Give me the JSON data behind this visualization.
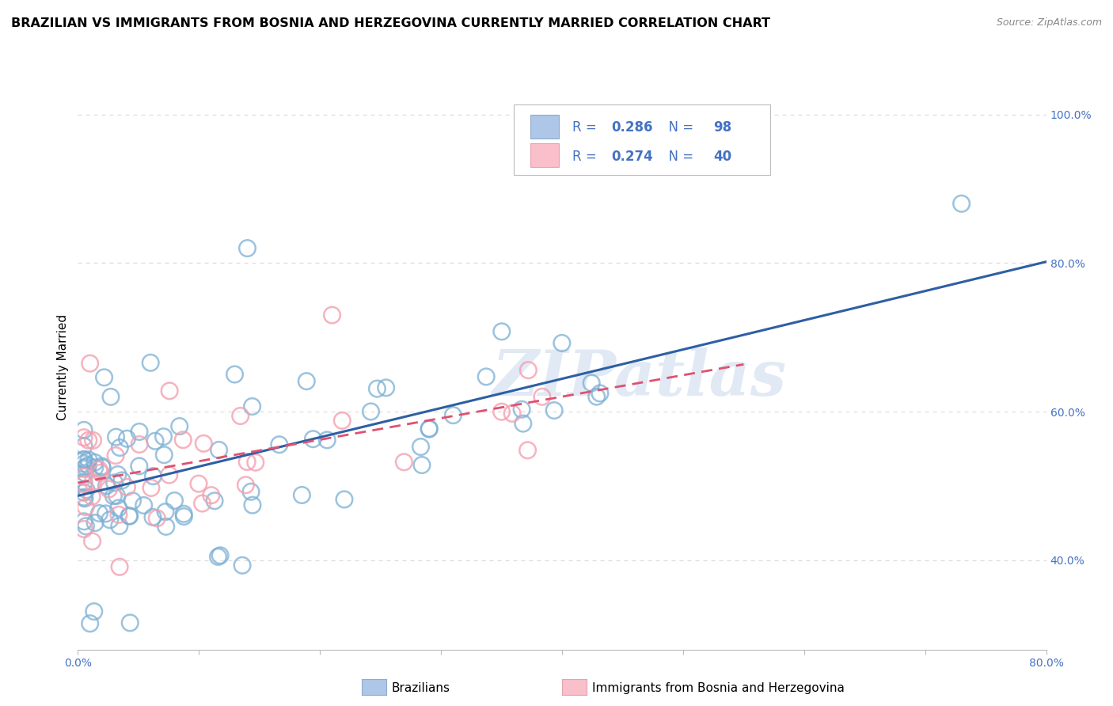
{
  "title": "BRAZILIAN VS IMMIGRANTS FROM BOSNIA AND HERZEGOVINA CURRENTLY MARRIED CORRELATION CHART",
  "source": "Source: ZipAtlas.com",
  "ylabel": "Currently Married",
  "xlim": [
    0.0,
    0.8
  ],
  "ylim": [
    0.28,
    1.04
  ],
  "xticks": [
    0.0,
    0.1,
    0.2,
    0.3,
    0.4,
    0.5,
    0.6,
    0.7,
    0.8
  ],
  "xticklabels": [
    "0.0%",
    "",
    "",
    "",
    "",
    "",
    "",
    "",
    "80.0%"
  ],
  "yticks_right": [
    0.4,
    0.6,
    0.8,
    1.0
  ],
  "yticklabels_right": [
    "40.0%",
    "60.0%",
    "80.0%",
    "100.0%"
  ],
  "series1_label": "Brazilians",
  "series1_R": "0.286",
  "series1_N": "98",
  "series1_color": "#7BAFD4",
  "series2_label": "Immigrants from Bosnia and Herzegovina",
  "series2_R": "0.274",
  "series2_N": "40",
  "series2_color": "#F4A0B0",
  "watermark": "ZIPatlas",
  "legend_box_color1": "#AEC6E8",
  "legend_box_color2": "#F9BFCA",
  "grid_color": "#DDDDDD",
  "background_color": "#FFFFFF",
  "title_fontsize": 11.5,
  "axis_label_fontsize": 11,
  "tick_fontsize": 10,
  "blue_text": "#4472C4",
  "regression1_color": "#2E5FA3",
  "regression2_color": "#E05070"
}
